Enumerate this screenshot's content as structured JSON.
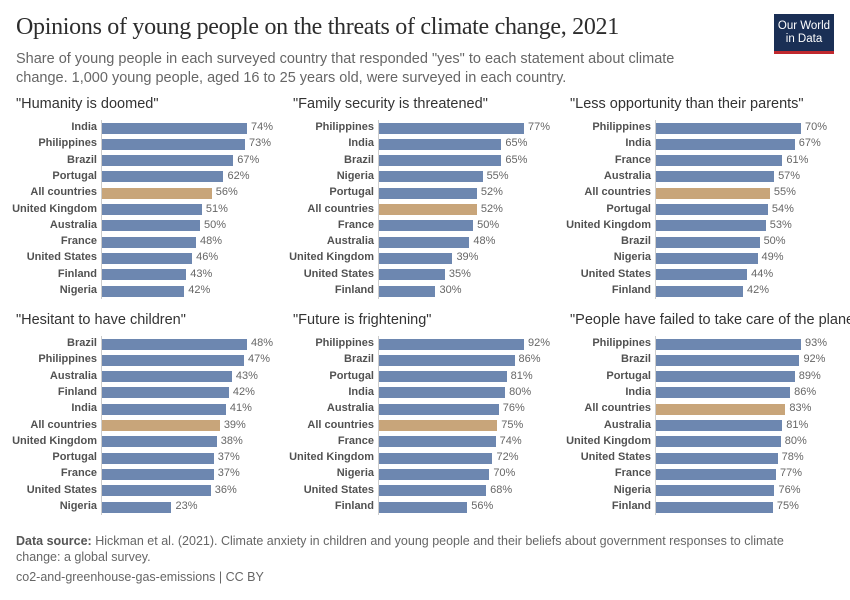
{
  "header": {
    "title": "Opinions of young people on the threats of climate change, 2021",
    "subtitle": "Share of young people in each surveyed country that responded \"yes\" to each statement about climate change. 1,000 young people, aged 16 to 25 years old, were surveyed in each country.",
    "logo_line1": "Our World",
    "logo_line2": "in Data"
  },
  "colors": {
    "country": "#6d87b0",
    "all_countries": "#c8a57a"
  },
  "chart_data": [
    {
      "type": "bar",
      "orientation": "horizontal",
      "title": "\"Humanity is doomed\"",
      "unit": "%",
      "categories": [
        "India",
        "Philippines",
        "Brazil",
        "Portugal",
        "All countries",
        "United Kingdom",
        "Australia",
        "France",
        "United States",
        "Finland",
        "Nigeria"
      ],
      "values": [
        74,
        73,
        67,
        62,
        56,
        51,
        50,
        48,
        46,
        43,
        42
      ]
    },
    {
      "type": "bar",
      "orientation": "horizontal",
      "title": "\"Family security is threatened\"",
      "unit": "%",
      "categories": [
        "Philippines",
        "India",
        "Brazil",
        "Nigeria",
        "Portugal",
        "All countries",
        "France",
        "Australia",
        "United Kingdom",
        "United States",
        "Finland"
      ],
      "values": [
        77,
        65,
        65,
        55,
        52,
        52,
        50,
        48,
        39,
        35,
        30
      ]
    },
    {
      "type": "bar",
      "orientation": "horizontal",
      "title": "\"Less opportunity than their parents\"",
      "unit": "%",
      "categories": [
        "Philippines",
        "India",
        "France",
        "Australia",
        "All countries",
        "Portugal",
        "United Kingdom",
        "Brazil",
        "Nigeria",
        "United States",
        "Finland"
      ],
      "values": [
        70,
        67,
        61,
        57,
        55,
        54,
        53,
        50,
        49,
        44,
        42
      ]
    },
    {
      "type": "bar",
      "orientation": "horizontal",
      "title": "\"Hesitant to have children\"",
      "unit": "%",
      "categories": [
        "Brazil",
        "Philippines",
        "Australia",
        "Finland",
        "India",
        "All countries",
        "United Kingdom",
        "Portugal",
        "France",
        "United States",
        "Nigeria"
      ],
      "values": [
        48,
        47,
        43,
        42,
        41,
        39,
        38,
        37,
        37,
        36,
        23
      ]
    },
    {
      "type": "bar",
      "orientation": "horizontal",
      "title": "\"Future is frightening\"",
      "unit": "%",
      "categories": [
        "Philippines",
        "Brazil",
        "Portugal",
        "India",
        "Australia",
        "All countries",
        "France",
        "United Kingdom",
        "Nigeria",
        "United States",
        "Finland"
      ],
      "values": [
        92,
        86,
        81,
        80,
        76,
        75,
        74,
        72,
        70,
        68,
        56
      ]
    },
    {
      "type": "bar",
      "orientation": "horizontal",
      "title": "\"People have failed to take care of the planet\"",
      "unit": "%",
      "categories": [
        "Philippines",
        "Brazil",
        "Portugal",
        "India",
        "All countries",
        "Australia",
        "United Kingdom",
        "United States",
        "France",
        "Nigeria",
        "Finland"
      ],
      "values": [
        93,
        92,
        89,
        86,
        83,
        81,
        80,
        78,
        77,
        76,
        75
      ]
    }
  ],
  "footer": {
    "source_label": "Data source:",
    "source_text": "Hickman et al. (2021). Climate anxiety in children and young people and their beliefs about government responses to climate change: a global survey.",
    "license": "co2-and-greenhouse-gas-emissions | CC BY"
  }
}
